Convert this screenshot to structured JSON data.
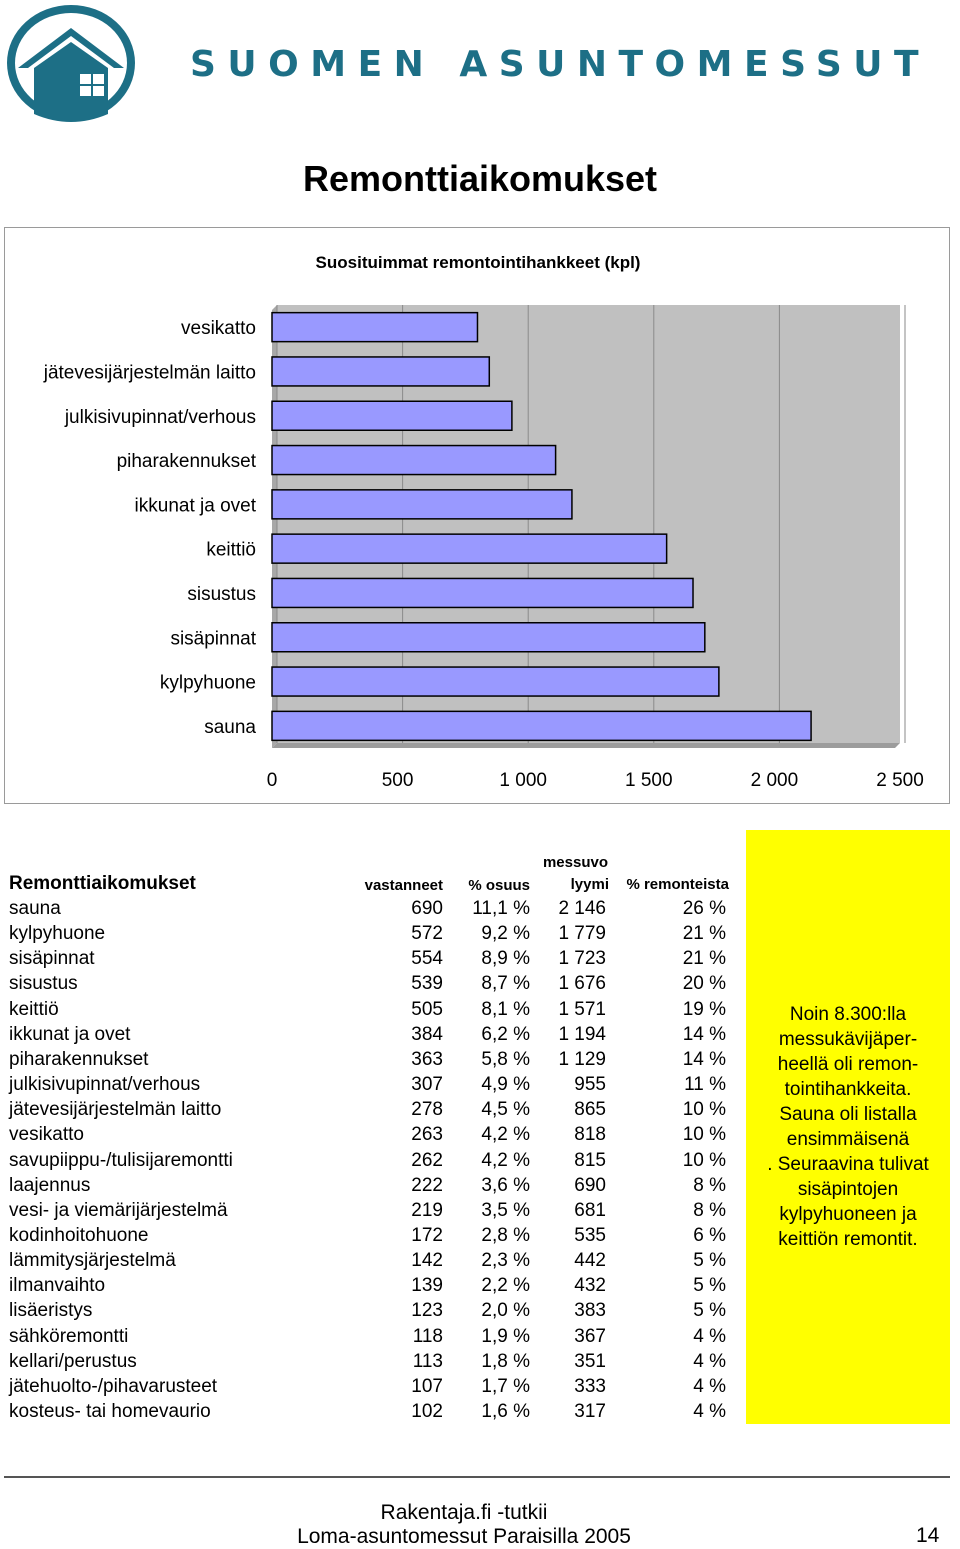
{
  "brand": {
    "name": "SUOMEN ASUNTOMESSUT",
    "color": "#1d6f86",
    "logo_icon": "house-window-logo"
  },
  "page_title": "Remonttiaikomukset",
  "chart_data": {
    "type": "bar",
    "orientation": "horizontal",
    "title": "Suosituimmat remontointihankkeet (kpl)",
    "categories": [
      "vesikatto",
      "jätevesijärjestelmän laitto",
      "julkisivupinnat/verhous",
      "piharakennukset",
      "ikkunat ja ovet",
      "keittiö",
      "sisustus",
      "sisäpinnat",
      "kylpyhuone",
      "sauna"
    ],
    "values": [
      818,
      865,
      955,
      1129,
      1194,
      1571,
      1676,
      1723,
      1779,
      2146
    ],
    "xlim": [
      0,
      2500
    ],
    "x_ticks": [
      "0",
      "500",
      "1 000",
      "1 500",
      "2 000",
      "2 500"
    ],
    "grid": true,
    "bar_color": "#9999ff",
    "plot_bg": "#c0c0c0"
  },
  "table": {
    "title": "Remonttiaikomukset",
    "headers": [
      "vastanneet",
      "% osuus",
      "messuvo",
      "lyymi",
      "% remonteista"
    ],
    "rows": [
      [
        "sauna",
        "690",
        "11,1 %",
        "2 146",
        "26 %"
      ],
      [
        "kylpyhuone",
        "572",
        "9,2 %",
        "1 779",
        "21 %"
      ],
      [
        "sisäpinnat",
        "554",
        "8,9 %",
        "1 723",
        "21 %"
      ],
      [
        "sisustus",
        "539",
        "8,7 %",
        "1 676",
        "20 %"
      ],
      [
        "keittiö",
        "505",
        "8,1 %",
        "1 571",
        "19 %"
      ],
      [
        "ikkunat ja ovet",
        "384",
        "6,2 %",
        "1 194",
        "14 %"
      ],
      [
        "piharakennukset",
        "363",
        "5,8 %",
        "1 129",
        "14 %"
      ],
      [
        "julkisivupinnat/verhous",
        "307",
        "4,9 %",
        "955",
        "11 %"
      ],
      [
        "jätevesijärjestelmän laitto",
        "278",
        "4,5 %",
        "865",
        "10 %"
      ],
      [
        "vesikatto",
        "263",
        "4,2 %",
        "818",
        "10 %"
      ],
      [
        "savupiippu-/tulisijaremontti",
        "262",
        "4,2 %",
        "815",
        "10 %"
      ],
      [
        "laajennus",
        "222",
        "3,6 %",
        "690",
        "8 %"
      ],
      [
        "vesi- ja viemärijärjestelmä",
        "219",
        "3,5 %",
        "681",
        "8 %"
      ],
      [
        "kodinhoitohuone",
        "172",
        "2,8 %",
        "535",
        "6 %"
      ],
      [
        "lämmitysjärjestelmä",
        "142",
        "2,3 %",
        "442",
        "5 %"
      ],
      [
        "ilmanvaihto",
        "139",
        "2,2 %",
        "432",
        "5 %"
      ],
      [
        "lisäeristys",
        "123",
        "2,0 %",
        "383",
        "5 %"
      ],
      [
        "sähköremontti",
        "118",
        "1,9 %",
        "367",
        "4 %"
      ],
      [
        "kellari/perustus",
        "113",
        "1,8 %",
        "351",
        "4 %"
      ],
      [
        "jätehuolto-/pihavarusteet",
        "107",
        "1,7 %",
        "333",
        "4 %"
      ],
      [
        "kosteus- tai homevaurio",
        "102",
        "1,6 %",
        "317",
        "4 %"
      ]
    ]
  },
  "note": {
    "text": "Noin 8.300:lla\nmessukävijäper-\nheellä oli remon-\ntointihankkeita.\nSauna oli listalla\nensimmäisenä\n. Seuraavina tulivat\nsisäpintojen\nkylpyhuoneen ja\nkeittiön remontit.",
    "bg_color": "#ffff00"
  },
  "footer": {
    "line1": "Rakentaja.fi -tutkii",
    "line2": "Loma-asuntomessut Paraisilla 2005",
    "page_number": "14"
  }
}
